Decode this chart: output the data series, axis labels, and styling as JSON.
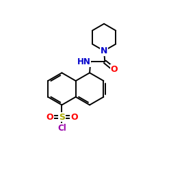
{
  "bg_color": "#ffffff",
  "atom_colors": {
    "N": "#0000cc",
    "O": "#ff0000",
    "S": "#aaaa00",
    "Cl": "#9900aa"
  },
  "bond_color": "#000000",
  "figsize": [
    2.5,
    2.5
  ],
  "dpi": 100,
  "lw": 1.4
}
